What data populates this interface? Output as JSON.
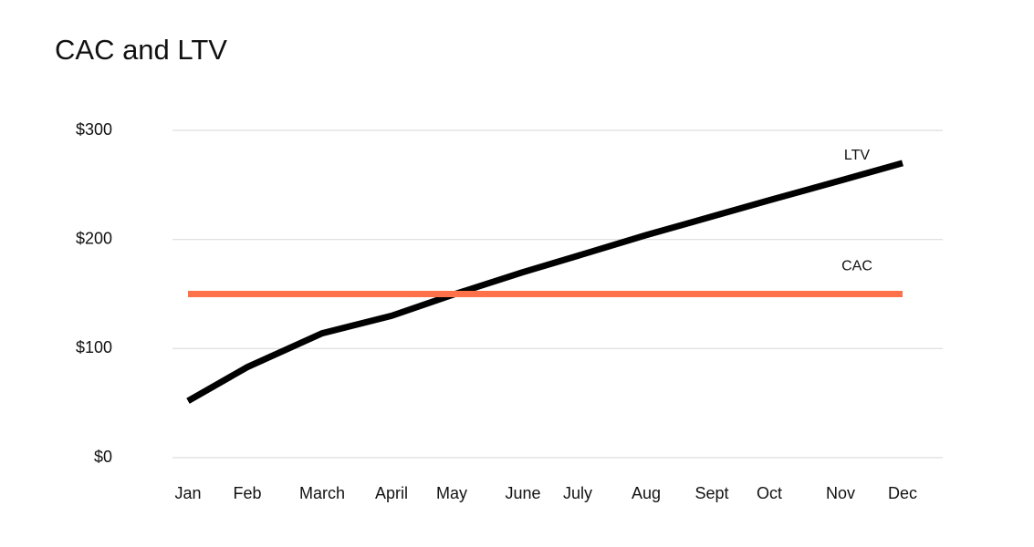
{
  "chart_data": {
    "type": "line",
    "title": "CAC and LTV",
    "categories": [
      "Jan",
      "Feb",
      "March",
      "April",
      "May",
      "June",
      "July",
      "Aug",
      "Sept",
      "Oct",
      "Nov",
      "Dec"
    ],
    "series": [
      {
        "name": "LTV",
        "color": "#000000",
        "values": [
          52,
          83,
          114,
          130,
          149,
          170,
          185,
          204,
          221,
          236,
          254,
          270
        ]
      },
      {
        "name": "CAC",
        "color": "#ff7149",
        "values": [
          150,
          150,
          150,
          150,
          150,
          150,
          150,
          150,
          150,
          150,
          150,
          150
        ]
      }
    ],
    "ylim": [
      0,
      300
    ],
    "yticks": [
      {
        "value": 0,
        "label": "$0"
      },
      {
        "value": 100,
        "label": "$100"
      },
      {
        "value": 200,
        "label": "$200"
      },
      {
        "value": 300,
        "label": "$300"
      }
    ],
    "grid": true
  }
}
